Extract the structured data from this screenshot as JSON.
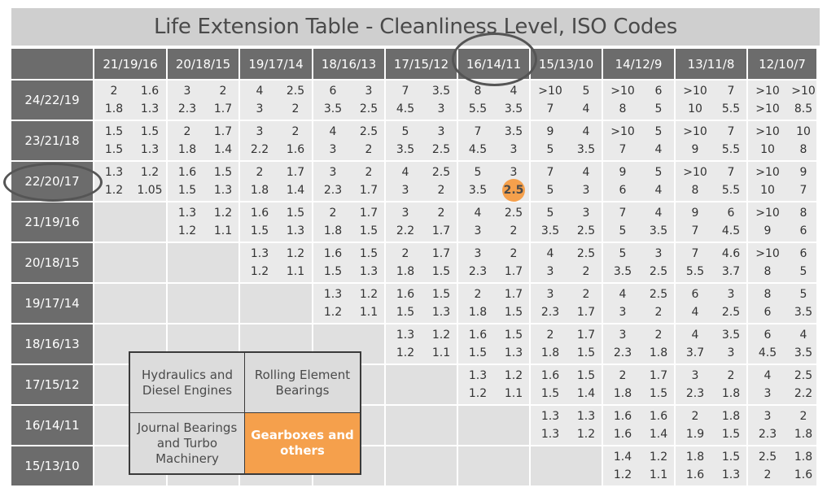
{
  "title": "Life Extension Table - Cleanliness Level, ISO Codes",
  "columns": [
    "21/19/16",
    "20/18/15",
    "19/17/14",
    "18/16/13",
    "17/15/12",
    "16/14/11",
    "15/13/10",
    "14/12/9",
    "13/11/8",
    "12/10/7"
  ],
  "rows": [
    {
      "label": "24/22/19",
      "cells": [
        [
          "2",
          "1.6",
          "1.8",
          "1.3"
        ],
        [
          "3",
          "2",
          "2.3",
          "1.7"
        ],
        [
          "4",
          "2.5",
          "3",
          "2"
        ],
        [
          "6",
          "3",
          "3.5",
          "2.5"
        ],
        [
          "7",
          "3.5",
          "4.5",
          "3"
        ],
        [
          "8",
          "4",
          "5.5",
          "3.5"
        ],
        [
          ">10",
          "5",
          "7",
          "4"
        ],
        [
          ">10",
          "6",
          "8",
          "5"
        ],
        [
          ">10",
          "7",
          "10",
          "5.5"
        ],
        [
          ">10",
          ">10",
          ">10",
          "8.5"
        ]
      ]
    },
    {
      "label": "23/21/18",
      "cells": [
        [
          "1.5",
          "1.5",
          "1.5",
          "1.3"
        ],
        [
          "2",
          "1.7",
          "1.8",
          "1.4"
        ],
        [
          "3",
          "2",
          "2.2",
          "1.6"
        ],
        [
          "4",
          "2.5",
          "3",
          "2"
        ],
        [
          "5",
          "3",
          "3.5",
          "2.5"
        ],
        [
          "7",
          "3.5",
          "4.5",
          "3"
        ],
        [
          "9",
          "4",
          "5",
          "3.5"
        ],
        [
          ">10",
          "5",
          "7",
          "4"
        ],
        [
          ">10",
          "7",
          "9",
          "5.5"
        ],
        [
          ">10",
          "10",
          "10",
          "8"
        ]
      ]
    },
    {
      "label": "22/20/17",
      "cells": [
        [
          "1.3",
          "1.2",
          "1.2",
          "1.05"
        ],
        [
          "1.6",
          "1.5",
          "1.5",
          "1.3"
        ],
        [
          "2",
          "1.7",
          "1.8",
          "1.4"
        ],
        [
          "3",
          "2",
          "2.3",
          "1.7"
        ],
        [
          "4",
          "2.5",
          "3",
          "2"
        ],
        [
          "5",
          "3",
          "3.5",
          "2.5"
        ],
        [
          "7",
          "4",
          "5",
          "3"
        ],
        [
          "9",
          "5",
          "6",
          "4"
        ],
        [
          ">10",
          "7",
          "8",
          "5.5"
        ],
        [
          ">10",
          "9",
          "10",
          "7"
        ]
      ]
    },
    {
      "label": "21/19/16",
      "cells": [
        null,
        [
          "1.3",
          "1.2",
          "1.2",
          "1.1"
        ],
        [
          "1.6",
          "1.5",
          "1.5",
          "1.3"
        ],
        [
          "2",
          "1.7",
          "1.8",
          "1.5"
        ],
        [
          "3",
          "2",
          "2.2",
          "1.7"
        ],
        [
          "4",
          "2.5",
          "3",
          "2"
        ],
        [
          "5",
          "3",
          "3.5",
          "2.5"
        ],
        [
          "7",
          "4",
          "5",
          "3.5"
        ],
        [
          "9",
          "6",
          "7",
          "4.5"
        ],
        [
          ">10",
          "8",
          "9",
          "6"
        ]
      ]
    },
    {
      "label": "20/18/15",
      "cells": [
        null,
        null,
        [
          "1.3",
          "1.2",
          "1.2",
          "1.1"
        ],
        [
          "1.6",
          "1.5",
          "1.5",
          "1.3"
        ],
        [
          "2",
          "1.7",
          "1.8",
          "1.5"
        ],
        [
          "3",
          "2",
          "2.3",
          "1.7"
        ],
        [
          "4",
          "2.5",
          "3",
          "2"
        ],
        [
          "5",
          "3",
          "3.5",
          "2.5"
        ],
        [
          "7",
          "4.6",
          "5.5",
          "3.7"
        ],
        [
          ">10",
          "6",
          "8",
          "5"
        ]
      ]
    },
    {
      "label": "19/17/14",
      "cells": [
        null,
        null,
        null,
        [
          "1.3",
          "1.2",
          "1.2",
          "1.1"
        ],
        [
          "1.6",
          "1.5",
          "1.5",
          "1.3"
        ],
        [
          "2",
          "1.7",
          "1.8",
          "1.5"
        ],
        [
          "3",
          "2",
          "2.3",
          "1.7"
        ],
        [
          "4",
          "2.5",
          "3",
          "2"
        ],
        [
          "6",
          "3",
          "4",
          "2.5"
        ],
        [
          "8",
          "5",
          "6",
          "3.5"
        ]
      ]
    },
    {
      "label": "18/16/13",
      "cells": [
        null,
        null,
        null,
        null,
        [
          "1.3",
          "1.2",
          "1.2",
          "1.1"
        ],
        [
          "1.6",
          "1.5",
          "1.5",
          "1.3"
        ],
        [
          "2",
          "1.7",
          "1.8",
          "1.5"
        ],
        [
          "3",
          "2",
          "2.3",
          "1.8"
        ],
        [
          "4",
          "3.5",
          "3.7",
          "3"
        ],
        [
          "6",
          "4",
          "4.5",
          "3.5"
        ]
      ]
    },
    {
      "label": "17/15/12",
      "cells": [
        null,
        null,
        null,
        null,
        null,
        [
          "1.3",
          "1.2",
          "1.2",
          "1.1"
        ],
        [
          "1.6",
          "1.5",
          "1.5",
          "1.4"
        ],
        [
          "2",
          "1.7",
          "1.8",
          "1.5"
        ],
        [
          "3",
          "2",
          "2.3",
          "1.8"
        ],
        [
          "4",
          "2.5",
          "3",
          "2.2"
        ]
      ]
    },
    {
      "label": "16/14/11",
      "cells": [
        null,
        null,
        null,
        null,
        null,
        null,
        [
          "1.3",
          "1.3",
          "1.3",
          "1.2"
        ],
        [
          "1.6",
          "1.6",
          "1.6",
          "1.4"
        ],
        [
          "2",
          "1.8",
          "1.9",
          "1.5"
        ],
        [
          "3",
          "2",
          "2.3",
          "1.8"
        ]
      ]
    },
    {
      "label": "15/13/10",
      "cells": [
        null,
        null,
        null,
        null,
        null,
        null,
        null,
        [
          "1.4",
          "1.2",
          "1.2",
          "1.1"
        ],
        [
          "1.8",
          "1.5",
          "1.6",
          "1.3"
        ],
        [
          "2.5",
          "1.8",
          "2",
          "1.6"
        ]
      ]
    }
  ],
  "highlight": {
    "row": 2,
    "col": 5,
    "index": 3
  },
  "circled": {
    "column": "16/14/11",
    "row": "22/20/17"
  },
  "legend": {
    "hydraulics": "Hydraulics and\nDiesel Engines",
    "rolling": "Rolling Element\nBearings",
    "journal": "Journal Bearings\nand Turbo\nMachinery",
    "gearboxes": "Gearboxes and\nothers"
  },
  "colors": {
    "header_bg": "#6c6c6c",
    "cell_bg": "#eaeaea",
    "empty_bg": "#e0e0e0",
    "accent": "#f5a04c",
    "title_bg": "#cfcfcf"
  }
}
